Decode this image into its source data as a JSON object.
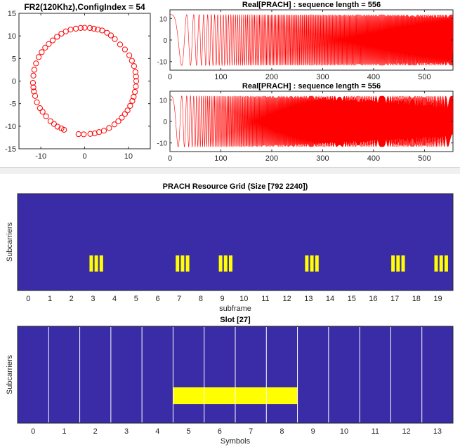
{
  "colors": {
    "scatter": "#ff0000",
    "signal": "#ff0000",
    "grid_bg": "#3a2ba6",
    "grid_fg": "#ffff00",
    "slot_line": "#ffffff"
  },
  "chart_data": [
    {
      "type": "scatter",
      "title": "FR2(120Khz),ConfigIndex = 54",
      "xlim": [
        -15,
        15
      ],
      "ylim": [
        -15,
        15
      ],
      "xticks": [
        -10,
        0,
        10
      ],
      "yticks": [
        15,
        10,
        5,
        0,
        -5,
        -10,
        -15
      ],
      "xtick_labels": [
        "-10",
        "0",
        "10"
      ],
      "ytick_labels": [
        "15",
        "10",
        "5",
        "0",
        "-5",
        "-10",
        "-15"
      ],
      "points": [
        [
          0.0,
          11.8
        ],
        [
          1.2,
          11.75
        ],
        [
          2.1,
          11.6
        ],
        [
          3.0,
          11.4
        ],
        [
          4.0,
          11.2
        ],
        [
          5.1,
          10.7
        ],
        [
          6.0,
          10.1
        ],
        [
          6.9,
          9.3
        ],
        [
          8.1,
          8.1
        ],
        [
          9.2,
          7.0
        ],
        [
          10.2,
          5.7
        ],
        [
          10.8,
          4.5
        ],
        [
          11.3,
          3.3
        ],
        [
          11.6,
          2.0
        ],
        [
          11.75,
          1.0
        ],
        [
          11.8,
          0.0
        ],
        [
          11.7,
          -1.2
        ],
        [
          11.5,
          -2.4
        ],
        [
          11.2,
          -3.5
        ],
        [
          10.9,
          -4.4
        ],
        [
          10.4,
          -5.5
        ],
        [
          9.8,
          -6.5
        ],
        [
          9.2,
          -7.3
        ],
        [
          8.5,
          -8.1
        ],
        [
          7.7,
          -8.9
        ],
        [
          6.8,
          -9.6
        ],
        [
          5.6,
          -10.4
        ],
        [
          4.4,
          -11.0
        ],
        [
          3.3,
          -11.3
        ],
        [
          2.3,
          -11.6
        ],
        [
          1.3,
          -11.7
        ],
        [
          -0.2,
          -11.8
        ],
        [
          -1.4,
          -11.75
        ],
        [
          -4.7,
          -10.8
        ],
        [
          -5.3,
          -10.5
        ],
        [
          -6.2,
          -10.1
        ],
        [
          -7.0,
          -9.5
        ],
        [
          -7.8,
          -8.9
        ],
        [
          -8.8,
          -7.8
        ],
        [
          -9.6,
          -6.8
        ],
        [
          -10.2,
          -6.0
        ],
        [
          -10.9,
          -4.7
        ],
        [
          -11.3,
          -3.3
        ],
        [
          -11.6,
          -2.3
        ],
        [
          -11.7,
          -1.4
        ],
        [
          -11.8,
          -0.4
        ],
        [
          -11.7,
          1.2
        ],
        [
          -11.5,
          2.5
        ],
        [
          -11.1,
          3.9
        ],
        [
          -10.5,
          5.3
        ],
        [
          -9.8,
          6.4
        ],
        [
          -9.0,
          7.4
        ],
        [
          -8.2,
          8.2
        ],
        [
          -7.3,
          9.0
        ],
        [
          -6.3,
          9.8
        ],
        [
          -5.3,
          10.5
        ],
        [
          -4.3,
          11.0
        ],
        [
          -3.2,
          11.4
        ],
        [
          -2.0,
          11.6
        ],
        [
          -0.9,
          11.75
        ]
      ]
    },
    {
      "type": "line",
      "title": "Real[PRACH] : sequence length = 556",
      "xlim": [
        0,
        556
      ],
      "ylim": [
        -14,
        14
      ],
      "xticks": [
        0,
        100,
        200,
        300,
        400,
        500
      ],
      "yticks": [
        10,
        0,
        -10
      ],
      "xtick_labels": [
        "0",
        "100",
        "200",
        "300",
        "400",
        "500"
      ],
      "ytick_labels": [
        "10",
        "0",
        "-10"
      ],
      "amplitude": 11.8,
      "sequence_length": 556,
      "root": 1
    },
    {
      "type": "line",
      "title": "Real[PRACH] : sequence length = 556",
      "xlim": [
        0,
        556
      ],
      "ylim": [
        -14,
        14
      ],
      "xticks": [
        0,
        100,
        200,
        300,
        400,
        500
      ],
      "yticks": [
        10,
        0,
        -10
      ],
      "xtick_labels": [
        "0",
        "100",
        "200",
        "300",
        "400",
        "500"
      ],
      "ytick_labels": [
        "10",
        "0",
        "-10"
      ],
      "amplitude": 11.8,
      "sequence_length": 556,
      "root": 2
    },
    {
      "type": "heatmap",
      "title": "PRACH Resource Grid (Size [792 2240])",
      "xlabel": "subframe",
      "ylabel": "Subcarriers",
      "xlim": [
        -0.5,
        19.7
      ],
      "xticks": [
        0,
        1,
        2,
        3,
        4,
        5,
        6,
        7,
        8,
        9,
        10,
        11,
        12,
        13,
        14,
        15,
        16,
        17,
        18,
        19
      ],
      "xtick_labels": [
        "0",
        "1",
        "2",
        "3",
        "4",
        "5",
        "6",
        "7",
        "8",
        "9",
        "10",
        "11",
        "12",
        "13",
        "14",
        "15",
        "16",
        "17",
        "18",
        "19"
      ],
      "occasion_subframes": [
        3,
        7,
        9,
        13,
        17,
        19
      ],
      "bars_per_occasion": 3
    },
    {
      "type": "heatmap",
      "title": "Slot [27]",
      "xlabel": "Symbols",
      "ylabel": "Subcarriers",
      "xlim": [
        -0.5,
        13.5
      ],
      "xticks": [
        0,
        1,
        2,
        3,
        4,
        5,
        6,
        7,
        8,
        9,
        10,
        11,
        12,
        13
      ],
      "xtick_labels": [
        "0",
        "1",
        "2",
        "3",
        "4",
        "5",
        "6",
        "7",
        "8",
        "9",
        "10",
        "11",
        "12",
        "13"
      ],
      "active_symbols": [
        5,
        8
      ]
    }
  ]
}
